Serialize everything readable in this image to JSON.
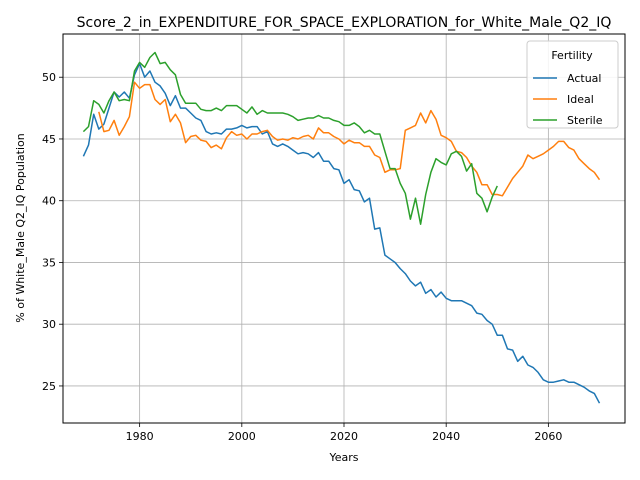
{
  "chart_data": {
    "type": "line",
    "title": "Score_2_in_EXPENDITURE_FOR_SPACE_EXPLORATION_for_White_Male_Q2_IQ",
    "xlabel": "Years",
    "ylabel": "% of White_Male Q2_IQ Population",
    "xlim": [
      1965,
      2075
    ],
    "ylim": [
      22,
      53.5
    ],
    "xticks": [
      1980,
      2000,
      2020,
      2040,
      2060
    ],
    "yticks": [
      25,
      30,
      35,
      40,
      45,
      50
    ],
    "grid": true,
    "legend": {
      "title": "Fertility",
      "position": "top-right"
    },
    "series": [
      {
        "name": "Actual",
        "color": "#1f77b4",
        "points": [
          [
            1969,
            43.6
          ],
          [
            1970,
            44.5
          ],
          [
            1971,
            47.0
          ],
          [
            1972,
            45.8
          ],
          [
            1973,
            46.2
          ],
          [
            1974,
            47.5
          ],
          [
            1975,
            48.8
          ],
          [
            1976,
            48.4
          ],
          [
            1977,
            48.8
          ],
          [
            1978,
            48.3
          ],
          [
            1979,
            50.2
          ],
          [
            1980,
            51.1
          ],
          [
            1981,
            50.0
          ],
          [
            1982,
            50.5
          ],
          [
            1983,
            49.6
          ],
          [
            1984,
            49.3
          ],
          [
            1985,
            48.7
          ],
          [
            1986,
            47.7
          ],
          [
            1987,
            48.5
          ],
          [
            1988,
            47.5
          ],
          [
            1989,
            47.5
          ],
          [
            1990,
            47.1
          ],
          [
            1991,
            46.7
          ],
          [
            1992,
            46.5
          ],
          [
            1993,
            45.6
          ],
          [
            1994,
            45.4
          ],
          [
            1995,
            45.5
          ],
          [
            1996,
            45.4
          ],
          [
            1997,
            45.8
          ],
          [
            1998,
            45.8
          ],
          [
            1999,
            45.9
          ],
          [
            2000,
            46.1
          ],
          [
            2001,
            45.9
          ],
          [
            2002,
            46.0
          ],
          [
            2003,
            46.0
          ],
          [
            2004,
            45.4
          ],
          [
            2005,
            45.6
          ],
          [
            2006,
            44.6
          ],
          [
            2007,
            44.4
          ],
          [
            2008,
            44.6
          ],
          [
            2009,
            44.4
          ],
          [
            2010,
            44.1
          ],
          [
            2011,
            43.8
          ],
          [
            2012,
            43.9
          ],
          [
            2013,
            43.8
          ],
          [
            2014,
            43.5
          ],
          [
            2015,
            43.9
          ],
          [
            2016,
            43.2
          ],
          [
            2017,
            43.2
          ],
          [
            2018,
            42.6
          ],
          [
            2019,
            42.5
          ],
          [
            2020,
            41.4
          ],
          [
            2021,
            41.7
          ],
          [
            2022,
            40.9
          ],
          [
            2023,
            40.8
          ],
          [
            2024,
            39.9
          ],
          [
            2025,
            40.2
          ],
          [
            2026,
            37.7
          ],
          [
            2027,
            37.8
          ],
          [
            2028,
            35.6
          ],
          [
            2029,
            35.3
          ],
          [
            2030,
            35.0
          ],
          [
            2031,
            34.5
          ],
          [
            2032,
            34.1
          ],
          [
            2033,
            33.5
          ],
          [
            2034,
            33.1
          ],
          [
            2035,
            33.4
          ],
          [
            2036,
            32.5
          ],
          [
            2037,
            32.8
          ],
          [
            2038,
            32.2
          ],
          [
            2039,
            32.6
          ],
          [
            2040,
            32.1
          ],
          [
            2041,
            31.9
          ],
          [
            2042,
            31.9
          ],
          [
            2043,
            31.9
          ],
          [
            2044,
            31.7
          ],
          [
            2045,
            31.5
          ],
          [
            2046,
            30.9
          ],
          [
            2047,
            30.8
          ],
          [
            2048,
            30.3
          ],
          [
            2049,
            30.0
          ],
          [
            2050,
            29.1
          ],
          [
            2051,
            29.1
          ],
          [
            2052,
            28.0
          ],
          [
            2053,
            27.9
          ],
          [
            2054,
            27.0
          ],
          [
            2055,
            27.4
          ],
          [
            2056,
            26.7
          ],
          [
            2057,
            26.5
          ],
          [
            2058,
            26.1
          ],
          [
            2059,
            25.5
          ],
          [
            2060,
            25.3
          ],
          [
            2061,
            25.3
          ],
          [
            2062,
            25.4
          ],
          [
            2063,
            25.5
          ],
          [
            2064,
            25.3
          ],
          [
            2065,
            25.3
          ],
          [
            2066,
            25.1
          ],
          [
            2067,
            24.9
          ],
          [
            2068,
            24.6
          ],
          [
            2069,
            24.4
          ],
          [
            2070,
            23.6
          ]
        ]
      },
      {
        "name": "Ideal",
        "color": "#ff7f0e",
        "points": [
          [
            1972,
            47.2
          ],
          [
            1973,
            45.6
          ],
          [
            1974,
            45.7
          ],
          [
            1975,
            46.5
          ],
          [
            1976,
            45.3
          ],
          [
            1977,
            46.0
          ],
          [
            1978,
            46.8
          ],
          [
            1979,
            49.6
          ],
          [
            1980,
            49.1
          ],
          [
            1981,
            49.4
          ],
          [
            1982,
            49.4
          ],
          [
            1983,
            48.2
          ],
          [
            1984,
            47.8
          ],
          [
            1985,
            48.2
          ],
          [
            1986,
            46.4
          ],
          [
            1987,
            47.0
          ],
          [
            1988,
            46.3
          ],
          [
            1989,
            44.7
          ],
          [
            1990,
            45.2
          ],
          [
            1991,
            45.3
          ],
          [
            1992,
            44.9
          ],
          [
            1993,
            44.8
          ],
          [
            1994,
            44.3
          ],
          [
            1995,
            44.5
          ],
          [
            1996,
            44.2
          ],
          [
            1997,
            45.1
          ],
          [
            1998,
            45.6
          ],
          [
            1999,
            45.3
          ],
          [
            2000,
            45.4
          ],
          [
            2001,
            45.0
          ],
          [
            2002,
            45.4
          ],
          [
            2003,
            45.4
          ],
          [
            2004,
            45.6
          ],
          [
            2005,
            45.7
          ],
          [
            2006,
            45.2
          ],
          [
            2007,
            44.9
          ],
          [
            2008,
            45.0
          ],
          [
            2009,
            44.9
          ],
          [
            2010,
            45.1
          ],
          [
            2011,
            45.0
          ],
          [
            2012,
            45.2
          ],
          [
            2013,
            45.3
          ],
          [
            2014,
            45.0
          ],
          [
            2015,
            45.9
          ],
          [
            2016,
            45.5
          ],
          [
            2017,
            45.5
          ],
          [
            2018,
            45.2
          ],
          [
            2019,
            45.0
          ],
          [
            2020,
            44.6
          ],
          [
            2021,
            44.9
          ],
          [
            2022,
            44.7
          ],
          [
            2023,
            44.7
          ],
          [
            2024,
            44.4
          ],
          [
            2025,
            44.4
          ],
          [
            2026,
            43.7
          ],
          [
            2027,
            43.5
          ],
          [
            2028,
            42.3
          ],
          [
            2029,
            42.5
          ],
          [
            2030,
            42.5
          ],
          [
            2031,
            42.6
          ],
          [
            2032,
            45.7
          ],
          [
            2033,
            45.9
          ],
          [
            2034,
            46.1
          ],
          [
            2035,
            47.1
          ],
          [
            2036,
            46.3
          ],
          [
            2037,
            47.3
          ],
          [
            2038,
            46.6
          ],
          [
            2039,
            45.3
          ],
          [
            2040,
            45.1
          ],
          [
            2041,
            44.8
          ],
          [
            2042,
            44.0
          ],
          [
            2043,
            43.9
          ],
          [
            2044,
            43.5
          ],
          [
            2045,
            42.8
          ],
          [
            2046,
            42.3
          ],
          [
            2047,
            41.3
          ],
          [
            2048,
            41.3
          ],
          [
            2049,
            40.5
          ],
          [
            2050,
            40.5
          ],
          [
            2051,
            40.4
          ],
          [
            2052,
            41.1
          ],
          [
            2053,
            41.8
          ],
          [
            2054,
            42.3
          ],
          [
            2055,
            42.8
          ],
          [
            2056,
            43.7
          ],
          [
            2057,
            43.4
          ],
          [
            2058,
            43.6
          ],
          [
            2059,
            43.8
          ],
          [
            2060,
            44.1
          ],
          [
            2061,
            44.4
          ],
          [
            2062,
            44.8
          ],
          [
            2063,
            44.8
          ],
          [
            2064,
            44.3
          ],
          [
            2065,
            44.1
          ],
          [
            2066,
            43.4
          ],
          [
            2067,
            43.0
          ],
          [
            2068,
            42.6
          ],
          [
            2069,
            42.3
          ],
          [
            2070,
            41.7
          ]
        ]
      },
      {
        "name": "Sterile",
        "color": "#2ca02c",
        "points": [
          [
            1969,
            45.6
          ],
          [
            1970,
            46.0
          ],
          [
            1971,
            48.1
          ],
          [
            1972,
            47.8
          ],
          [
            1973,
            47.1
          ],
          [
            1974,
            48.1
          ],
          [
            1975,
            48.8
          ],
          [
            1976,
            48.1
          ],
          [
            1977,
            48.2
          ],
          [
            1978,
            48.1
          ],
          [
            1979,
            50.5
          ],
          [
            1980,
            51.2
          ],
          [
            1981,
            50.8
          ],
          [
            1982,
            51.6
          ],
          [
            1983,
            52.0
          ],
          [
            1984,
            51.1
          ],
          [
            1985,
            51.2
          ],
          [
            1986,
            50.6
          ],
          [
            1987,
            50.2
          ],
          [
            1988,
            48.6
          ],
          [
            1989,
            47.9
          ],
          [
            1990,
            47.9
          ],
          [
            1991,
            47.9
          ],
          [
            1992,
            47.4
          ],
          [
            1993,
            47.3
          ],
          [
            1994,
            47.3
          ],
          [
            1995,
            47.5
          ],
          [
            1996,
            47.3
          ],
          [
            1997,
            47.7
          ],
          [
            1998,
            47.7
          ],
          [
            1999,
            47.7
          ],
          [
            2000,
            47.4
          ],
          [
            2001,
            47.1
          ],
          [
            2002,
            47.6
          ],
          [
            2003,
            47.0
          ],
          [
            2004,
            47.3
          ],
          [
            2005,
            47.1
          ],
          [
            2006,
            47.1
          ],
          [
            2007,
            47.1
          ],
          [
            2008,
            47.1
          ],
          [
            2009,
            47.0
          ],
          [
            2010,
            46.8
          ],
          [
            2011,
            46.5
          ],
          [
            2012,
            46.6
          ],
          [
            2013,
            46.7
          ],
          [
            2014,
            46.7
          ],
          [
            2015,
            46.9
          ],
          [
            2016,
            46.7
          ],
          [
            2017,
            46.7
          ],
          [
            2018,
            46.5
          ],
          [
            2019,
            46.4
          ],
          [
            2020,
            46.1
          ],
          [
            2021,
            46.1
          ],
          [
            2022,
            46.3
          ],
          [
            2023,
            46.0
          ],
          [
            2024,
            45.5
          ],
          [
            2025,
            45.7
          ],
          [
            2026,
            45.4
          ],
          [
            2027,
            45.4
          ],
          [
            2028,
            44.0
          ],
          [
            2029,
            42.6
          ],
          [
            2030,
            42.6
          ],
          [
            2031,
            41.4
          ],
          [
            2032,
            40.6
          ],
          [
            2033,
            38.5
          ],
          [
            2034,
            40.2
          ],
          [
            2035,
            38.1
          ],
          [
            2036,
            40.5
          ],
          [
            2037,
            42.3
          ],
          [
            2038,
            43.4
          ],
          [
            2039,
            43.1
          ],
          [
            2040,
            42.9
          ],
          [
            2041,
            43.8
          ],
          [
            2042,
            44.0
          ],
          [
            2043,
            43.6
          ],
          [
            2044,
            42.4
          ],
          [
            2045,
            43.0
          ],
          [
            2046,
            40.6
          ],
          [
            2047,
            40.2
          ],
          [
            2048,
            39.1
          ],
          [
            2049,
            40.3
          ],
          [
            2050,
            41.2
          ]
        ]
      }
    ]
  }
}
